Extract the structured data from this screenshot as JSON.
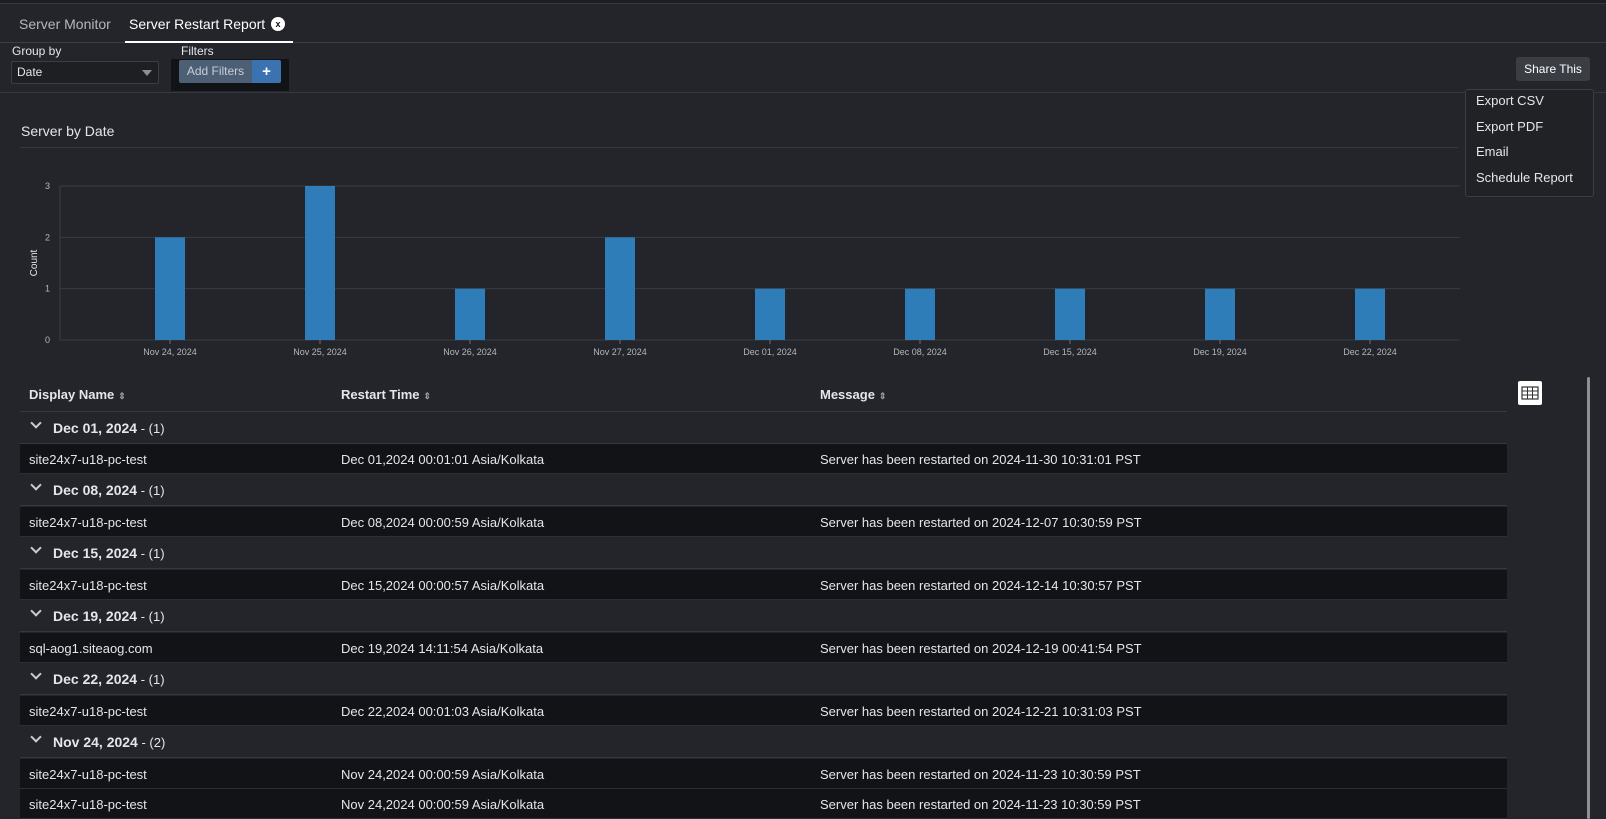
{
  "tabs": [
    {
      "label": "Server Monitor"
    },
    {
      "label": "Server Restart Report",
      "close": "x"
    }
  ],
  "toolbar": {
    "group_by_label": "Group by",
    "group_by_value": "Date",
    "filters_label": "Filters",
    "add_filters_label": "Add Filters",
    "add_icon": "+",
    "share_label": "Share This"
  },
  "share_menu": {
    "items": [
      "Export CSV",
      "Export PDF",
      "Email",
      "Schedule Report"
    ]
  },
  "chart": {
    "title": "Server by Date"
  },
  "chart_data": {
    "type": "bar",
    "categories": [
      "Nov 24, 2024",
      "Nov 25, 2024",
      "Nov 26, 2024",
      "Nov 27, 2024",
      "Dec 01, 2024",
      "Dec 08, 2024",
      "Dec 15, 2024",
      "Dec 19, 2024",
      "Dec 22, 2024"
    ],
    "values": [
      2,
      3,
      1,
      2,
      1,
      1,
      1,
      1,
      1
    ],
    "ylabel": "Count",
    "xlabel": "",
    "ylim": [
      0,
      3
    ],
    "yticks": [
      0,
      1,
      2,
      3
    ],
    "grid": true,
    "color": "#2e7db8"
  },
  "table": {
    "columns": [
      "Display Name",
      "Restart Time",
      "Message"
    ],
    "sort_icon": "⇕",
    "groups": [
      {
        "date": "Dec 01, 2024",
        "count": " - (1)",
        "rows": [
          [
            "site24x7-u18-pc-test",
            "Dec 01,2024 00:01:01 Asia/Kolkata",
            "Server has been restarted on 2024-11-30 10:31:01 PST"
          ]
        ]
      },
      {
        "date": "Dec 08, 2024",
        "count": " - (1)",
        "rows": [
          [
            "site24x7-u18-pc-test",
            "Dec 08,2024 00:00:59 Asia/Kolkata",
            "Server has been restarted on 2024-12-07 10:30:59 PST"
          ]
        ]
      },
      {
        "date": "Dec 15, 2024",
        "count": " - (1)",
        "rows": [
          [
            "site24x7-u18-pc-test",
            "Dec 15,2024 00:00:57 Asia/Kolkata",
            "Server has been restarted on 2024-12-14 10:30:57 PST"
          ]
        ]
      },
      {
        "date": "Dec 19, 2024",
        "count": " - (1)",
        "rows": [
          [
            "sql-aog1.siteaog.com",
            "Dec 19,2024 14:11:54 Asia/Kolkata",
            "Server has been restarted on 2024-12-19 00:41:54 PST"
          ]
        ]
      },
      {
        "date": "Dec 22, 2024",
        "count": " - (1)",
        "rows": [
          [
            "site24x7-u18-pc-test",
            "Dec 22,2024 00:01:03 Asia/Kolkata",
            "Server has been restarted on 2024-12-21 10:31:03 PST"
          ]
        ]
      },
      {
        "date": "Nov 24, 2024",
        "count": " - (2)",
        "rows": [
          [
            "site24x7-u18-pc-test",
            "Nov 24,2024 00:00:59 Asia/Kolkata",
            "Server has been restarted on 2024-11-23 10:30:59 PST"
          ],
          [
            "site24x7-u18-pc-test",
            "Nov 24,2024 00:00:59 Asia/Kolkata",
            "Server has been restarted on 2024-11-23 10:30:59 PST"
          ]
        ]
      }
    ]
  }
}
